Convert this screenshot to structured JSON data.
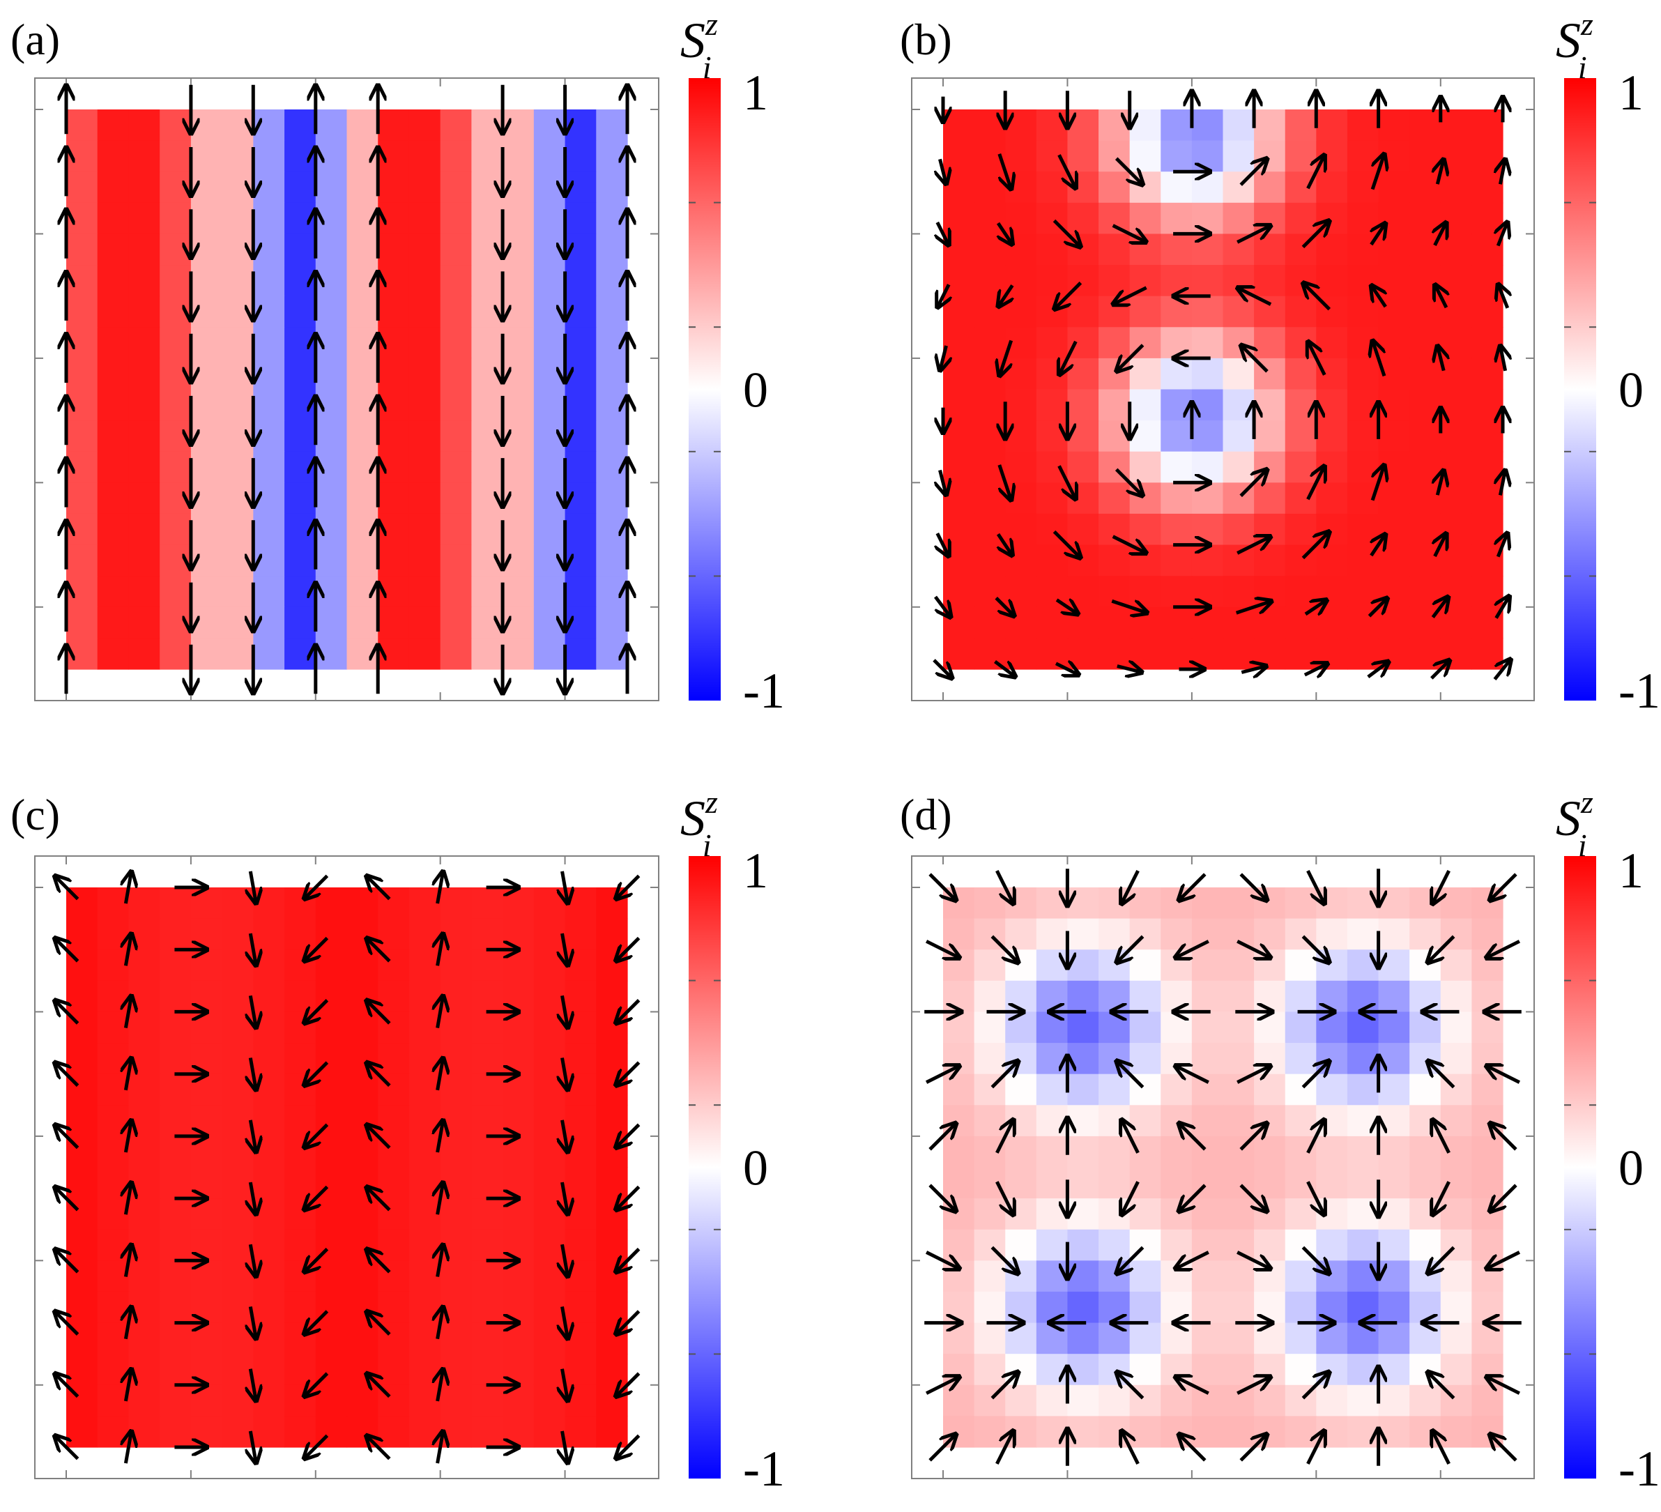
{
  "figure": {
    "colors": {
      "negative": "#0000ff",
      "zero": "#ffffff",
      "positive": "#ff0000",
      "arrow": "#000000",
      "frame": "#808080"
    },
    "colorbar": {
      "title_base": "S",
      "title_sup": "z",
      "title_sub": "i",
      "ticks": [
        "1",
        "0",
        "-1"
      ],
      "range": [
        -1,
        1
      ]
    },
    "lattice_size": 10
  },
  "chart_data": [
    {
      "type": "heatmap",
      "panel_label": "(a)",
      "description_z": "S_i^z per column",
      "column_sz": [
        0.7,
        0.9,
        0.9,
        0.7,
        0.3,
        -0.4,
        -0.8,
        -0.4,
        0.3,
        0.9,
        0.9,
        0.7,
        0.3,
        -0.4,
        -0.8,
        -0.4
      ],
      "arrow_columns": [
        {
          "col": 0,
          "dir": "up"
        },
        {
          "col": 2,
          "dir": "down"
        },
        {
          "col": 3,
          "dir": "down"
        },
        {
          "col": 4,
          "dir": "up"
        },
        {
          "col": 5,
          "dir": "up"
        },
        {
          "col": 7,
          "dir": "down"
        },
        {
          "col": 8,
          "dir": "down"
        },
        {
          "col": 9,
          "dir": "up"
        }
      ]
    },
    {
      "type": "heatmap",
      "panel_label": "(b)",
      "pattern": "skyrmion lattice with two blue cores per column strip",
      "cores": [
        {
          "x": 4.5,
          "y": 0.5
        },
        {
          "x": 4.5,
          "y": 5.5
        }
      ],
      "core_sz": -0.5,
      "background_sz": 0.9
    },
    {
      "type": "heatmap",
      "panel_label": "(c)",
      "pattern": "nearly uniform positive S^z with in-plane spiral",
      "background_sz": 0.95,
      "row_arrow_angles_deg": [
        135,
        80,
        0,
        -80,
        -135,
        135,
        80,
        0,
        -80,
        -135
      ]
    },
    {
      "type": "heatmap",
      "panel_label": "(d)",
      "pattern": "four blue vortex cores in a 2x2 arrangement",
      "cores": [
        {
          "x": 2.5,
          "y": 2.5
        },
        {
          "x": 7.5,
          "y": 2.5
        },
        {
          "x": 2.5,
          "y": 7.5
        },
        {
          "x": 7.5,
          "y": 7.5
        }
      ],
      "core_sz": -0.6,
      "background_sz": 0.3
    }
  ]
}
